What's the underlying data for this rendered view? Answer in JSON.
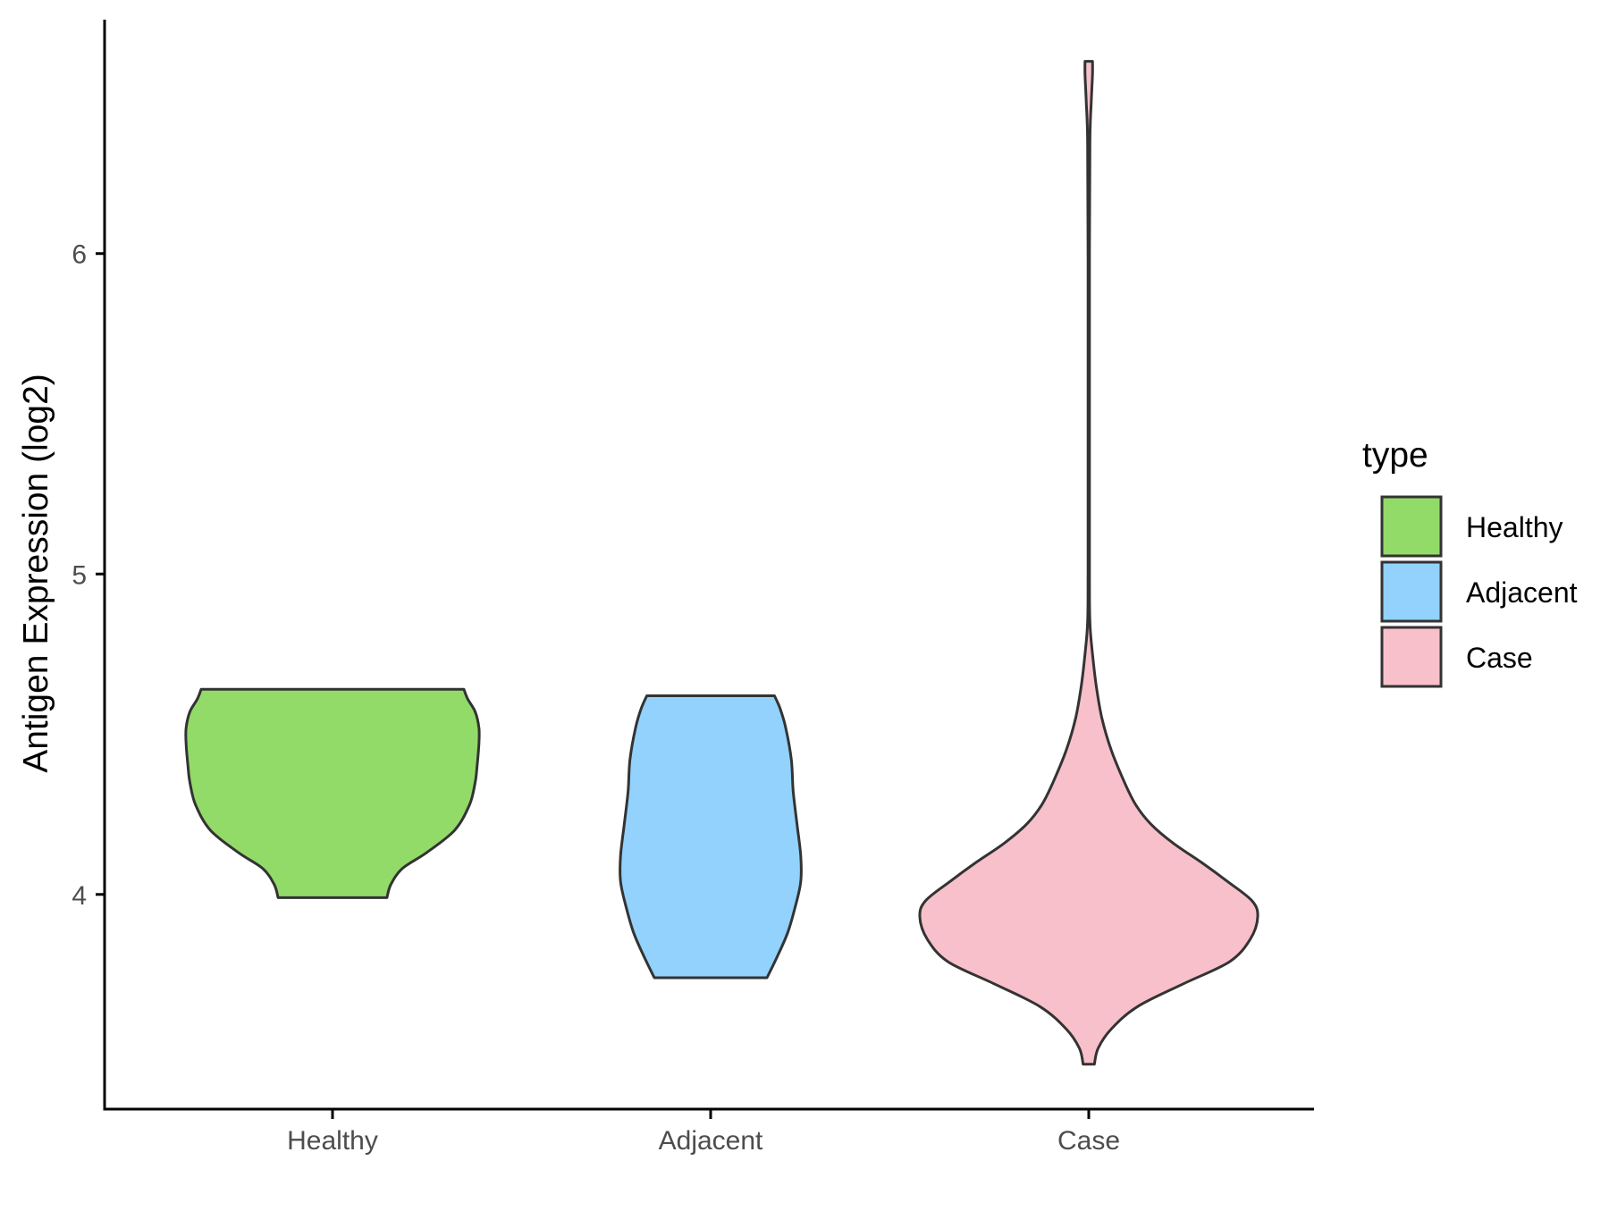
{
  "chart_data": {
    "type": "violin",
    "title": "",
    "xlabel": "",
    "ylabel": "Antigen Expression (log2)",
    "categories": [
      "Healthy",
      "Adjacent",
      "Case"
    ],
    "yticks": [
      "4",
      "5",
      "6"
    ],
    "ylim": [
      3.33,
      6.73
    ],
    "grid": false,
    "legend": {
      "title": "type",
      "placement": "right",
      "entries": [
        {
          "label": "Healthy",
          "color": "#93DB69"
        },
        {
          "label": "Adjacent",
          "color": "#92D2FD"
        },
        {
          "label": "Case",
          "color": "#F8C0CB"
        }
      ]
    },
    "series": [
      {
        "category": "Healthy",
        "color": "#93DB69",
        "min": 3.99,
        "max": 4.64,
        "density": [
          [
            3.99,
            0.29
          ],
          [
            4.03,
            0.31
          ],
          [
            4.08,
            0.37
          ],
          [
            4.13,
            0.5
          ],
          [
            4.2,
            0.65
          ],
          [
            4.28,
            0.73
          ],
          [
            4.35,
            0.76
          ],
          [
            4.4,
            0.77
          ],
          [
            4.47,
            0.78
          ],
          [
            4.52,
            0.78
          ],
          [
            4.57,
            0.76
          ],
          [
            4.61,
            0.72
          ],
          [
            4.64,
            0.7
          ]
        ]
      },
      {
        "category": "Adjacent",
        "color": "#92D2FD",
        "min": 3.74,
        "max": 4.62,
        "density": [
          [
            3.74,
            0.3
          ],
          [
            3.8,
            0.35
          ],
          [
            3.88,
            0.41
          ],
          [
            3.96,
            0.45
          ],
          [
            4.04,
            0.48
          ],
          [
            4.12,
            0.48
          ],
          [
            4.22,
            0.46
          ],
          [
            4.32,
            0.44
          ],
          [
            4.42,
            0.43
          ],
          [
            4.52,
            0.4
          ],
          [
            4.58,
            0.37
          ],
          [
            4.62,
            0.34
          ]
        ]
      },
      {
        "category": "Case",
        "color": "#F8C0CB",
        "min": 3.47,
        "max": 6.6,
        "density": [
          [
            3.47,
            0.03
          ],
          [
            3.52,
            0.05
          ],
          [
            3.58,
            0.12
          ],
          [
            3.65,
            0.26
          ],
          [
            3.72,
            0.5
          ],
          [
            3.79,
            0.75
          ],
          [
            3.86,
            0.86
          ],
          [
            3.93,
            0.9
          ],
          [
            3.98,
            0.87
          ],
          [
            4.04,
            0.74
          ],
          [
            4.1,
            0.6
          ],
          [
            4.16,
            0.45
          ],
          [
            4.22,
            0.33
          ],
          [
            4.28,
            0.25
          ],
          [
            4.35,
            0.19
          ],
          [
            4.45,
            0.12
          ],
          [
            4.55,
            0.07
          ],
          [
            4.65,
            0.04
          ],
          [
            4.75,
            0.02
          ],
          [
            4.85,
            0.006
          ],
          [
            5.0,
            0.004
          ],
          [
            5.5,
            0.004
          ],
          [
            6.0,
            0.004
          ],
          [
            6.35,
            0.006
          ],
          [
            6.48,
            0.014
          ],
          [
            6.56,
            0.02
          ],
          [
            6.6,
            0.02
          ]
        ]
      }
    ]
  }
}
